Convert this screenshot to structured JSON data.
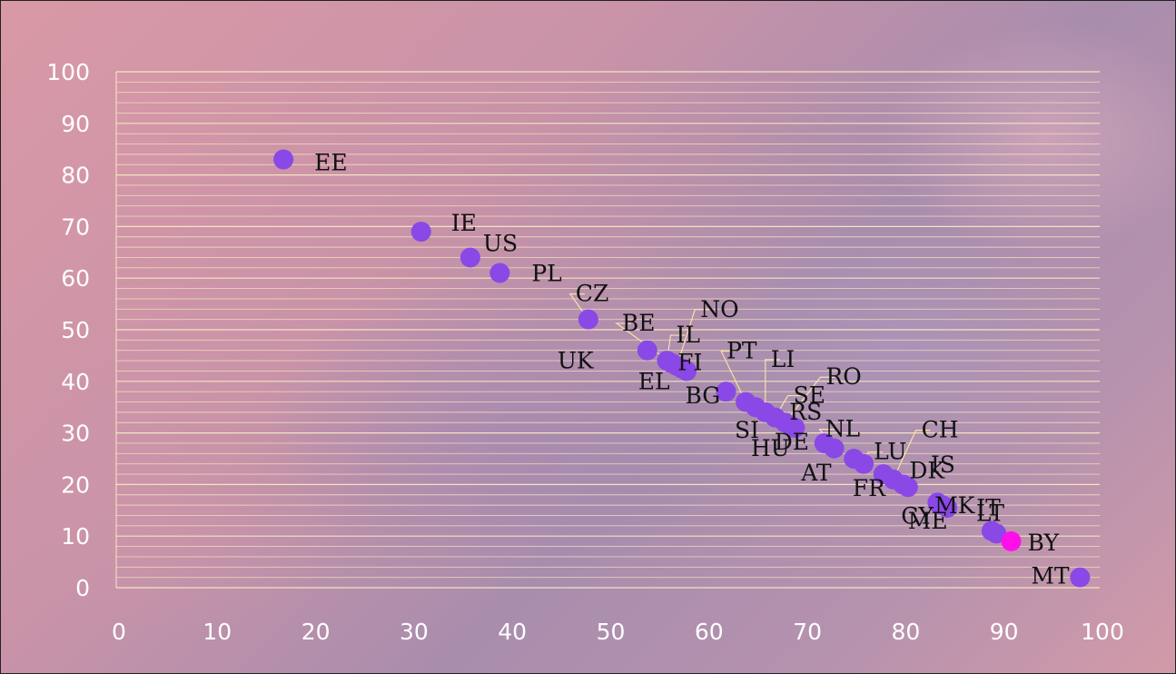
{
  "chart_data": {
    "type": "scatter",
    "title": "",
    "xlabel": "",
    "ylabel": "",
    "xlim": [
      0,
      100
    ],
    "ylim": [
      0,
      100
    ],
    "xticks": [
      "0",
      "10",
      "20",
      "30",
      "40",
      "50",
      "60",
      "70",
      "80",
      "90",
      "100"
    ],
    "yticks": [
      "0",
      "10",
      "20",
      "30",
      "40",
      "50",
      "60",
      "70",
      "80",
      "90",
      "100"
    ],
    "grid": "horizontal",
    "colors": {
      "point": "#8a48e6",
      "highlight": "#ff10e8",
      "grid": "#f6e9c2",
      "tick_text": "#ffffff",
      "label_text": "#111111",
      "leader": "#f6e2a8"
    },
    "points": [
      {
        "label": "EE",
        "x": 17,
        "y": 83
      },
      {
        "label": "IE",
        "x": 31,
        "y": 69
      },
      {
        "label": "US",
        "x": 36,
        "y": 64
      },
      {
        "label": "PL",
        "x": 39,
        "y": 61
      },
      {
        "label": "CZ",
        "x": 48,
        "y": 52
      },
      {
        "label": "UK",
        "x": 54,
        "y": 46
      },
      {
        "label": "IL",
        "x": 56,
        "y": 44
      },
      {
        "label": "BE",
        "x": 56.5,
        "y": 43.5
      },
      {
        "label": "NO",
        "x": 57,
        "y": 43
      },
      {
        "label": "EL",
        "x": 57.5,
        "y": 42.5
      },
      {
        "label": "FI",
        "x": 58,
        "y": 42
      },
      {
        "label": "BG",
        "x": 62,
        "y": 38
      },
      {
        "label": "PT",
        "x": 64,
        "y": 36
      },
      {
        "label": "SI",
        "x": 65,
        "y": 35
      },
      {
        "label": "LI",
        "x": 66,
        "y": 34
      },
      {
        "label": "SE",
        "x": 67,
        "y": 33
      },
      {
        "label": "RO",
        "x": 68,
        "y": 32
      },
      {
        "label": "HU",
        "x": 68.5,
        "y": 31.5
      },
      {
        "label": "RS",
        "x": 69,
        "y": 31
      },
      {
        "label": "DE",
        "x": 72,
        "y": 28
      },
      {
        "label": "NL",
        "x": 73,
        "y": 27
      },
      {
        "label": "AT",
        "x": 75,
        "y": 25
      },
      {
        "label": "LU",
        "x": 76,
        "y": 24
      },
      {
        "label": "FR",
        "x": 78,
        "y": 22
      },
      {
        "label": "CH",
        "x": 79,
        "y": 21
      },
      {
        "label": "DK",
        "x": 80,
        "y": 20
      },
      {
        "label": "IS",
        "x": 80.5,
        "y": 19.5
      },
      {
        "label": "CY",
        "x": 83.5,
        "y": 16.5
      },
      {
        "label": "ME",
        "x": 84,
        "y": 16
      },
      {
        "label": "MK",
        "x": 84.5,
        "y": 15.5
      },
      {
        "label": "LT",
        "x": 89,
        "y": 11
      },
      {
        "label": "IT",
        "x": 89.5,
        "y": 10.5
      },
      {
        "label": "BY",
        "x": 91,
        "y": 9,
        "highlight": true
      },
      {
        "label": "MT",
        "x": 98,
        "y": 2
      }
    ]
  }
}
